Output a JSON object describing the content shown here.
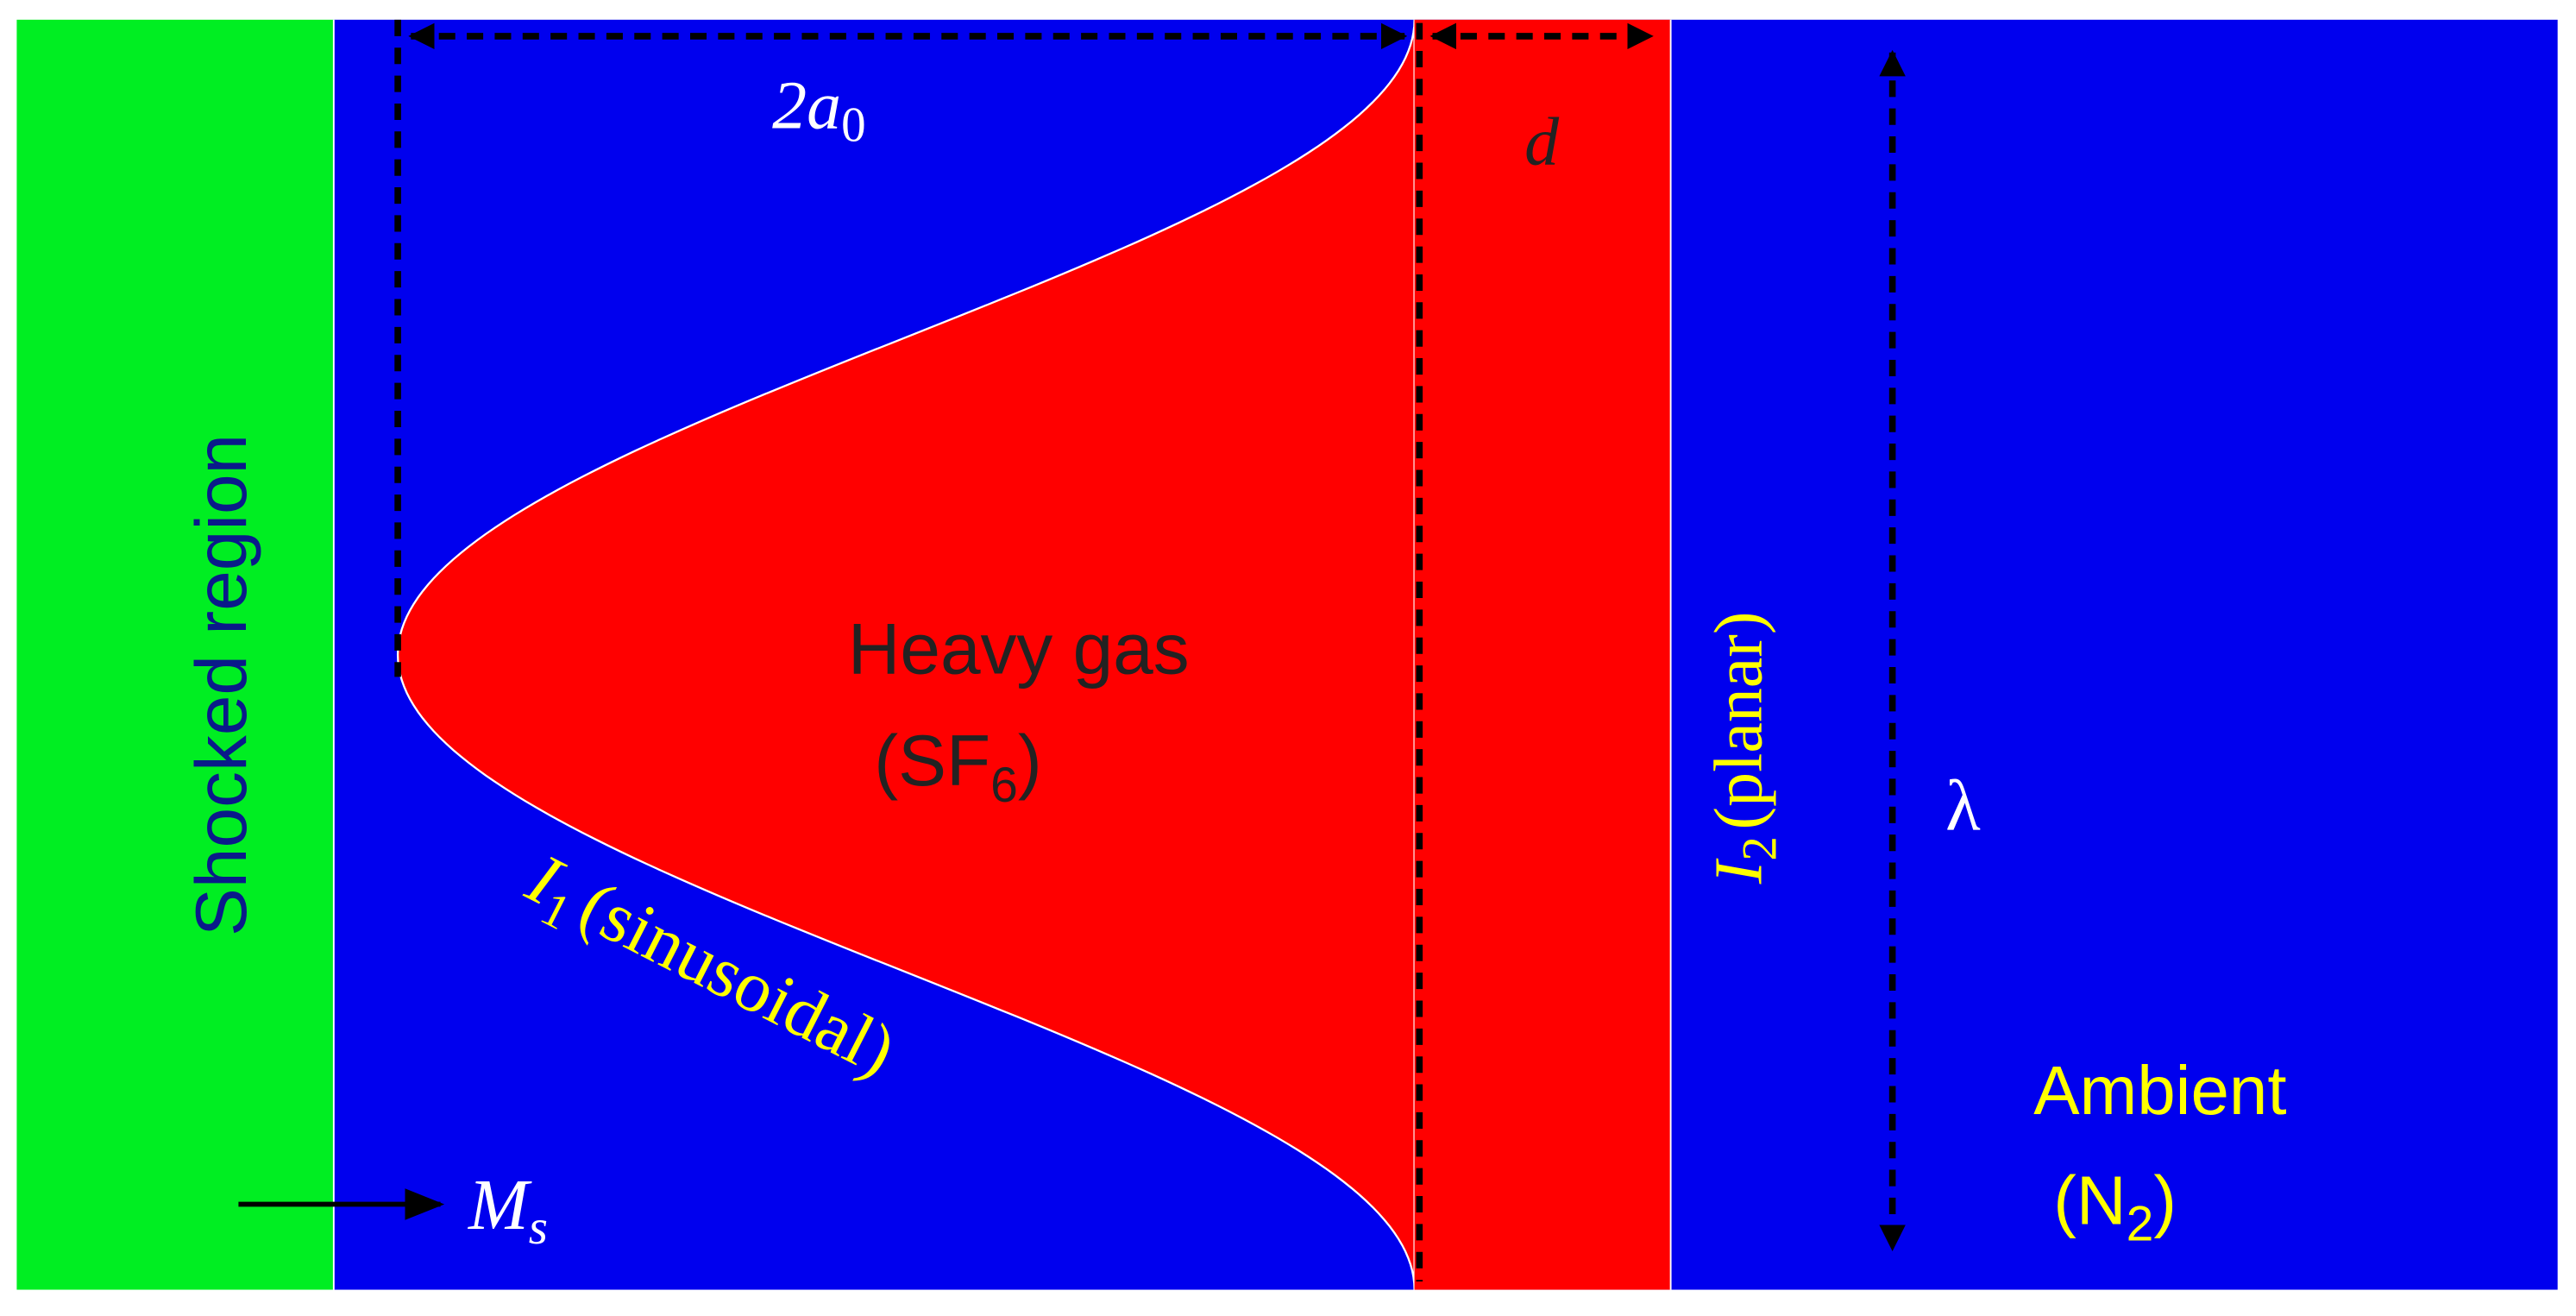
{
  "regions": {
    "shocked": "Shocked region",
    "heavy": {
      "line1": "Heavy gas",
      "line2": {
        "pre": "(SF",
        "sub": "6",
        "post": ")"
      }
    },
    "ambient": {
      "line1": "Ambient",
      "line2": {
        "pre": "(N",
        "sub": "2",
        "post": ")"
      }
    }
  },
  "interfaces": {
    "i1": {
      "main": "I",
      "sub": "1",
      "rest": "(sinusoidal)"
    },
    "i2": {
      "main": "I",
      "sub": "2",
      "rest": "(planar)"
    }
  },
  "dimensions": {
    "amplitude": {
      "main": "2a",
      "sub": "0"
    },
    "thickness": "d",
    "wavelength": "λ"
  },
  "shock": {
    "main": "M",
    "sub": "s"
  }
}
